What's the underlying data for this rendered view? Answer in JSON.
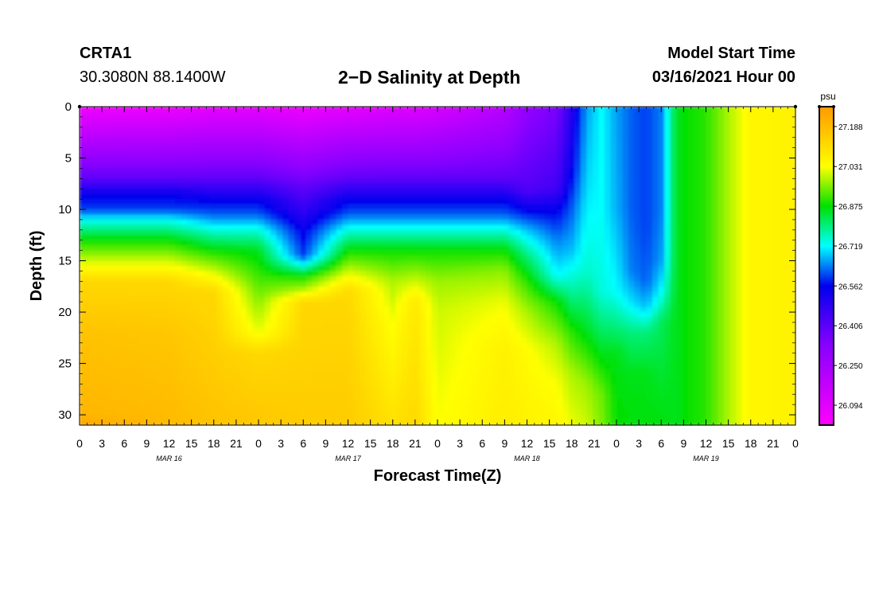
{
  "header": {
    "station_id": "CRTA1",
    "coords": "30.3080N 88.1400W",
    "title": "2−D Salinity at Depth",
    "start_label": "Model Start Time",
    "start_value": "03/16/2021 Hour 00"
  },
  "chart_data": {
    "type": "heatmap",
    "title": "2−D Salinity at Depth",
    "xlabel": "Forecast Time(Z)",
    "ylabel": "Depth (ft)",
    "x_unit": "hours since 03/16/2021 00Z",
    "xlim": [
      0,
      96
    ],
    "ylim": [
      31,
      0
    ],
    "x_ticks": [
      {
        "hour": 0,
        "label": "0"
      },
      {
        "hour": 3,
        "label": "3"
      },
      {
        "hour": 6,
        "label": "6"
      },
      {
        "hour": 9,
        "label": "9"
      },
      {
        "hour": 12,
        "label": "12"
      },
      {
        "hour": 15,
        "label": "15"
      },
      {
        "hour": 18,
        "label": "18"
      },
      {
        "hour": 21,
        "label": "21"
      },
      {
        "hour": 24,
        "label": "0"
      },
      {
        "hour": 27,
        "label": "3"
      },
      {
        "hour": 30,
        "label": "6"
      },
      {
        "hour": 33,
        "label": "9"
      },
      {
        "hour": 36,
        "label": "12"
      },
      {
        "hour": 39,
        "label": "15"
      },
      {
        "hour": 42,
        "label": "18"
      },
      {
        "hour": 45,
        "label": "21"
      },
      {
        "hour": 48,
        "label": "0"
      },
      {
        "hour": 51,
        "label": "3"
      },
      {
        "hour": 54,
        "label": "6"
      },
      {
        "hour": 57,
        "label": "9"
      },
      {
        "hour": 60,
        "label": "12"
      },
      {
        "hour": 63,
        "label": "15"
      },
      {
        "hour": 66,
        "label": "18"
      },
      {
        "hour": 69,
        "label": "21"
      },
      {
        "hour": 72,
        "label": "0"
      },
      {
        "hour": 75,
        "label": "3"
      },
      {
        "hour": 78,
        "label": "6"
      },
      {
        "hour": 81,
        "label": "9"
      },
      {
        "hour": 84,
        "label": "12"
      },
      {
        "hour": 87,
        "label": "15"
      },
      {
        "hour": 90,
        "label": "18"
      },
      {
        "hour": 93,
        "label": "21"
      },
      {
        "hour": 96,
        "label": "0"
      }
    ],
    "date_labels": [
      {
        "hour": 12,
        "label": "MAR 16"
      },
      {
        "hour": 36,
        "label": "MAR 17"
      },
      {
        "hour": 60,
        "label": "MAR 18"
      },
      {
        "hour": 84,
        "label": "MAR 19"
      }
    ],
    "y_ticks": [
      0,
      5,
      10,
      15,
      20,
      25,
      30
    ],
    "colorbar": {
      "unit": "psu",
      "range": [
        26.016,
        27.266
      ],
      "ticks": [
        "27.188",
        "27.031",
        "26.875",
        "26.719",
        "26.562",
        "26.406",
        "26.250",
        "26.094"
      ],
      "stops": [
        {
          "value": 26.016,
          "color": "#ff00ff"
        },
        {
          "value": 26.328,
          "color": "#8800ff"
        },
        {
          "value": 26.562,
          "color": "#0000ee"
        },
        {
          "value": 26.719,
          "color": "#00ffff"
        },
        {
          "value": 26.875,
          "color": "#00e000"
        },
        {
          "value": 27.031,
          "color": "#ffff00"
        },
        {
          "value": 27.266,
          "color": "#ff9900"
        }
      ]
    },
    "salinity_columns": [
      {
        "hour": 0,
        "profile": [
          [
            0,
            26.05
          ],
          [
            7,
            26.4
          ],
          [
            8.5,
            26.55
          ],
          [
            10,
            26.6
          ],
          [
            11,
            26.72
          ],
          [
            13,
            26.88
          ],
          [
            15,
            27.0
          ],
          [
            17,
            27.12
          ],
          [
            22,
            27.17
          ],
          [
            30,
            27.2
          ],
          [
            31,
            27.24
          ]
        ]
      },
      {
        "hour": 12,
        "profile": [
          [
            0,
            26.06
          ],
          [
            7,
            26.4
          ],
          [
            8.5,
            26.55
          ],
          [
            10,
            26.6
          ],
          [
            11,
            26.72
          ],
          [
            13,
            26.88
          ],
          [
            15,
            27.0
          ],
          [
            17,
            27.12
          ],
          [
            22,
            27.16
          ],
          [
            31,
            27.19
          ]
        ]
      },
      {
        "hour": 18,
        "profile": [
          [
            0,
            26.08
          ],
          [
            7,
            26.4
          ],
          [
            9,
            26.55
          ],
          [
            10.5,
            26.62
          ],
          [
            12,
            26.74
          ],
          [
            14,
            26.88
          ],
          [
            16,
            27.0
          ],
          [
            18,
            27.12
          ],
          [
            31,
            27.17
          ]
        ]
      },
      {
        "hour": 24,
        "profile": [
          [
            0,
            26.08
          ],
          [
            7,
            26.4
          ],
          [
            9,
            26.55
          ],
          [
            10.5,
            26.62
          ],
          [
            12,
            26.74
          ],
          [
            14,
            26.86
          ],
          [
            18,
            26.94
          ],
          [
            22,
            27.02
          ],
          [
            24,
            27.12
          ],
          [
            31,
            27.16
          ]
        ]
      },
      {
        "hour": 30,
        "profile": [
          [
            0,
            26.06
          ],
          [
            8,
            26.4
          ],
          [
            12,
            26.55
          ],
          [
            14.5,
            26.6
          ],
          [
            15.5,
            26.74
          ],
          [
            16.5,
            26.88
          ],
          [
            18,
            27.0
          ],
          [
            19,
            27.12
          ],
          [
            31,
            27.15
          ]
        ]
      },
      {
        "hour": 36,
        "profile": [
          [
            0,
            26.08
          ],
          [
            7,
            26.4
          ],
          [
            9,
            26.55
          ],
          [
            10.5,
            26.62
          ],
          [
            12,
            26.74
          ],
          [
            14,
            26.88
          ],
          [
            16,
            27.0
          ],
          [
            18,
            27.12
          ],
          [
            31,
            27.15
          ]
        ]
      },
      {
        "hour": 42,
        "profile": [
          [
            0,
            26.1
          ],
          [
            7,
            26.4
          ],
          [
            9,
            26.55
          ],
          [
            10.5,
            26.62
          ],
          [
            12,
            26.74
          ],
          [
            14,
            26.88
          ],
          [
            17,
            26.98
          ],
          [
            21,
            27.03
          ],
          [
            31,
            27.1
          ]
        ]
      },
      {
        "hour": 45,
        "profile": [
          [
            0,
            26.1
          ],
          [
            7,
            26.4
          ],
          [
            9,
            26.55
          ],
          [
            10.5,
            26.62
          ],
          [
            12,
            26.74
          ],
          [
            14,
            26.88
          ],
          [
            17,
            27.0
          ],
          [
            19,
            27.08
          ],
          [
            31,
            27.12
          ]
        ]
      },
      {
        "hour": 48,
        "profile": [
          [
            0,
            26.12
          ],
          [
            7,
            26.4
          ],
          [
            9,
            26.55
          ],
          [
            10.5,
            26.62
          ],
          [
            12,
            26.74
          ],
          [
            14,
            26.88
          ],
          [
            17,
            26.97
          ],
          [
            20,
            27.0
          ],
          [
            31,
            27.03
          ]
        ]
      },
      {
        "hour": 57,
        "profile": [
          [
            0,
            26.2
          ],
          [
            7,
            26.4
          ],
          [
            9,
            26.55
          ],
          [
            10.5,
            26.62
          ],
          [
            12,
            26.74
          ],
          [
            14,
            26.88
          ],
          [
            16,
            26.96
          ],
          [
            19,
            27.02
          ],
          [
            23,
            27.06
          ],
          [
            31,
            27.07
          ]
        ]
      },
      {
        "hour": 60,
        "profile": [
          [
            0,
            26.3
          ],
          [
            8,
            26.42
          ],
          [
            10,
            26.55
          ],
          [
            12,
            26.68
          ],
          [
            14.5,
            26.8
          ],
          [
            17,
            26.9
          ],
          [
            20,
            26.98
          ],
          [
            24,
            27.04
          ],
          [
            31,
            27.06
          ]
        ]
      },
      {
        "hour": 64,
        "profile": [
          [
            0,
            26.35
          ],
          [
            8,
            26.45
          ],
          [
            10,
            26.55
          ],
          [
            13,
            26.64
          ],
          [
            16.5,
            26.72
          ],
          [
            19,
            26.88
          ],
          [
            23,
            26.98
          ],
          [
            27,
            27.03
          ],
          [
            31,
            27.05
          ]
        ]
      },
      {
        "hour": 66,
        "profile": [
          [
            0,
            26.5
          ],
          [
            6,
            26.55
          ],
          [
            10,
            26.62
          ],
          [
            14,
            26.68
          ],
          [
            18,
            26.78
          ],
          [
            22,
            26.9
          ],
          [
            26,
            26.98
          ],
          [
            31,
            27.02
          ]
        ]
      },
      {
        "hour": 68,
        "profile": [
          [
            0,
            26.66
          ],
          [
            8,
            26.7
          ],
          [
            16,
            26.75
          ],
          [
            22,
            26.86
          ],
          [
            27,
            26.97
          ],
          [
            31,
            27.0
          ]
        ]
      },
      {
        "hour": 70,
        "profile": [
          [
            0,
            26.72
          ],
          [
            10,
            26.72
          ],
          [
            18,
            26.74
          ],
          [
            24,
            26.86
          ],
          [
            28,
            26.94
          ],
          [
            31,
            26.95
          ]
        ]
      },
      {
        "hour": 72,
        "profile": [
          [
            0,
            26.66
          ],
          [
            10,
            26.67
          ],
          [
            18,
            26.72
          ],
          [
            24,
            26.86
          ],
          [
            31,
            26.88
          ]
        ]
      },
      {
        "hour": 74,
        "profile": [
          [
            0,
            26.62
          ],
          [
            10,
            26.62
          ],
          [
            16,
            26.64
          ],
          [
            19,
            26.7
          ],
          [
            22,
            26.8
          ],
          [
            26,
            26.86
          ],
          [
            31,
            26.87
          ]
        ]
      },
      {
        "hour": 76,
        "profile": [
          [
            0,
            26.6
          ],
          [
            12,
            26.6
          ],
          [
            17,
            26.62
          ],
          [
            19.5,
            26.68
          ],
          [
            22,
            26.8
          ],
          [
            26,
            26.86
          ],
          [
            31,
            26.87
          ]
        ]
      },
      {
        "hour": 78,
        "profile": [
          [
            0,
            26.64
          ],
          [
            10,
            26.64
          ],
          [
            15,
            26.66
          ],
          [
            18,
            26.72
          ],
          [
            21,
            26.82
          ],
          [
            31,
            26.87
          ]
        ]
      },
      {
        "hour": 80,
        "profile": [
          [
            0,
            26.86
          ],
          [
            31,
            26.86
          ]
        ]
      },
      {
        "hour": 84,
        "profile": [
          [
            0,
            26.9
          ],
          [
            31,
            26.9
          ]
        ]
      },
      {
        "hour": 87,
        "profile": [
          [
            0,
            26.98
          ],
          [
            31,
            26.98
          ]
        ]
      },
      {
        "hour": 90,
        "profile": [
          [
            0,
            27.05
          ],
          [
            31,
            27.05
          ]
        ]
      },
      {
        "hour": 96,
        "profile": [
          [
            0,
            27.06
          ],
          [
            31,
            27.06
          ]
        ]
      }
    ]
  }
}
